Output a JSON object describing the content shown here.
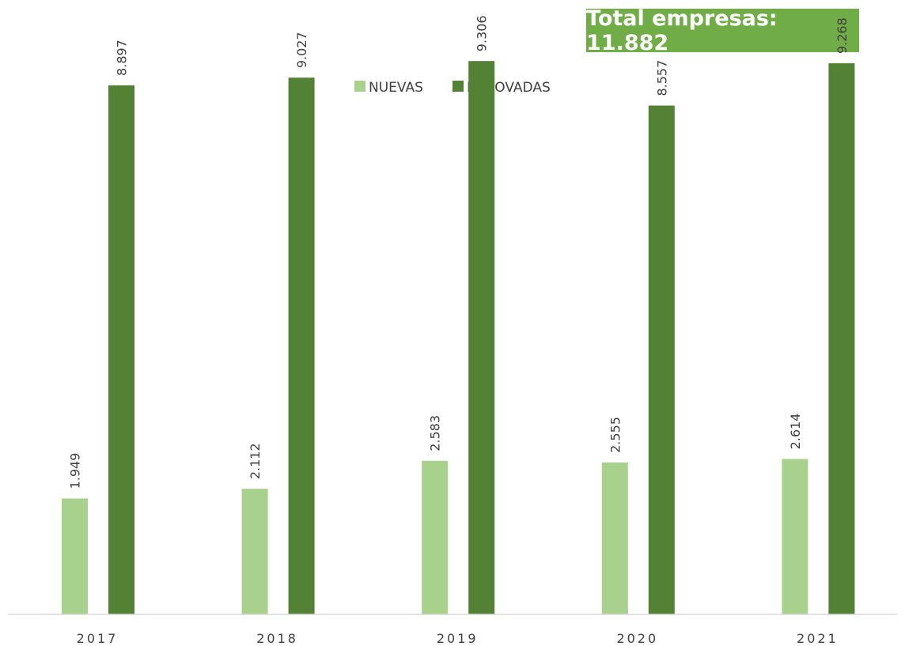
{
  "header": {
    "total_label": "Total empresas: 11.882"
  },
  "chart_data": {
    "type": "bar",
    "categories": [
      "2017",
      "2018",
      "2019",
      "2020",
      "2021"
    ],
    "series": [
      {
        "name": "NUEVAS",
        "values": [
          1949,
          2112,
          2583,
          2555,
          2614
        ],
        "labels": [
          "1.949",
          "2.112",
          "2.583",
          "2.555",
          "2.614"
        ],
        "color": "#a9d18e"
      },
      {
        "name": "RENOVADAS",
        "values": [
          8897,
          9027,
          9306,
          8557,
          9268
        ],
        "labels": [
          "8.897",
          "9.027",
          "9.306",
          "8.557",
          "9.268"
        ],
        "color": "#548235"
      }
    ],
    "title": "",
    "xlabel": "",
    "ylabel": "",
    "ylim": [
      0,
      10000
    ],
    "grid": false,
    "legend_position": "top-center",
    "value_axis_shown": false,
    "data_labels_rotated": true
  },
  "colors": {
    "total_box_bg": "#70ad47",
    "axis_line": "#d9d9d9",
    "text": "#404040"
  }
}
